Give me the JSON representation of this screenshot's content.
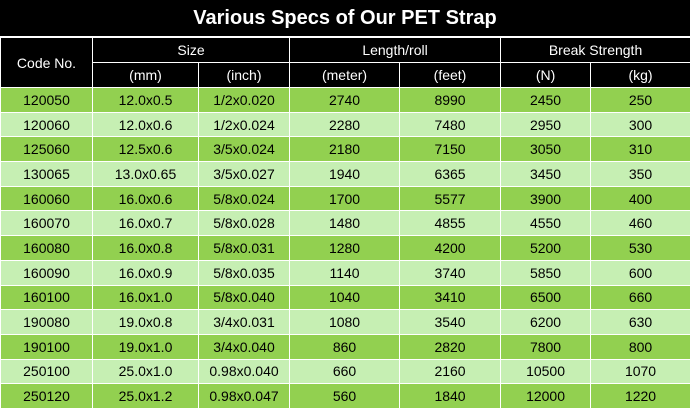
{
  "title": "Various Specs of Our PET Strap",
  "headers": {
    "code": "Code No.",
    "size": "Size",
    "length": "Length/roll",
    "break": "Break Strength",
    "mm": "(mm)",
    "inch": "(inch)",
    "meter": "(meter)",
    "feet": "(feet)",
    "n": "(N)",
    "kg": "(kg)"
  },
  "rows": [
    [
      "120050",
      "12.0x0.5",
      "1/2x0.020",
      "2740",
      "8990",
      "2450",
      "250"
    ],
    [
      "120060",
      "12.0x0.6",
      "1/2x0.024",
      "2280",
      "7480",
      "2950",
      "300"
    ],
    [
      "125060",
      "12.5x0.6",
      "3/5x0.024",
      "2180",
      "7150",
      "3050",
      "310"
    ],
    [
      "130065",
      "13.0x0.65",
      "3/5x0.027",
      "1940",
      "6365",
      "3450",
      "350"
    ],
    [
      "160060",
      "16.0x0.6",
      "5/8x0.024",
      "1700",
      "5577",
      "3900",
      "400"
    ],
    [
      "160070",
      "16.0x0.7",
      "5/8x0.028",
      "1480",
      "4855",
      "4550",
      "460"
    ],
    [
      "160080",
      "16.0x0.8",
      "5/8x0.031",
      "1280",
      "4200",
      "5200",
      "530"
    ],
    [
      "160090",
      "16.0x0.9",
      "5/8x0.035",
      "1140",
      "3740",
      "5850",
      "600"
    ],
    [
      "160100",
      "16.0x1.0",
      "5/8x0.040",
      "1040",
      "3410",
      "6500",
      "660"
    ],
    [
      "190080",
      "19.0x0.8",
      "3/4x0.031",
      "1080",
      "3540",
      "6200",
      "630"
    ],
    [
      "190100",
      "19.0x1.0",
      "3/4x0.040",
      "860",
      "2820",
      "7800",
      "800"
    ],
    [
      "250100",
      "25.0x1.0",
      "0.98x0.040",
      "660",
      "2160",
      "10500",
      "1070"
    ],
    [
      "250120",
      "25.0x1.2",
      "0.98x0.047",
      "560",
      "1840",
      "12000",
      "1220"
    ]
  ],
  "colors": {
    "odd_row": "#92d050",
    "even_row": "#c6efb3",
    "header_bg": "#000000"
  }
}
